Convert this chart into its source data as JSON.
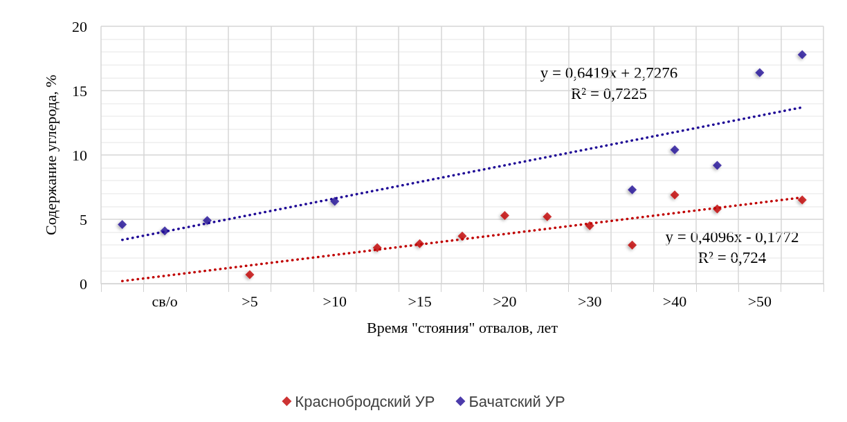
{
  "chart_data": {
    "type": "scatter",
    "xlabel": "Время \"стояния\" отвалов, лет",
    "ylabel": "Содержание углерода, %",
    "categories": [
      null,
      "св/о",
      null,
      ">5",
      null,
      ">10",
      null,
      ">15",
      null,
      ">20",
      null,
      ">30",
      null,
      ">40",
      null,
      ">50",
      null
    ],
    "series": [
      {
        "name": "Краснобродский УР",
        "color": "#c00000",
        "values": [
          null,
          null,
          null,
          0.7,
          null,
          null,
          2.8,
          3.1,
          3.7,
          5.3,
          5.2,
          4.5,
          3.0,
          6.9,
          5.8,
          null,
          6.5
        ]
      },
      {
        "name": "Бачатский УР",
        "color": "#1f0a96",
        "values": [
          4.6,
          4.1,
          4.9,
          null,
          null,
          6.4,
          null,
          null,
          null,
          null,
          null,
          null,
          7.3,
          10.4,
          9.2,
          16.4,
          17.8
        ]
      },
      {
        "type": "line",
        "color": "#c00000",
        "line_style": "dotted",
        "marker": "none",
        "values": [
          0.2,
          null,
          null,
          null,
          null,
          null,
          null,
          null,
          null,
          null,
          null,
          null,
          null,
          null,
          null,
          null,
          6.7
        ]
      },
      {
        "type": "line",
        "color": "#1f0a96",
        "line_style": "dotted",
        "marker": "none",
        "values": [
          3.4,
          null,
          null,
          null,
          null,
          null,
          null,
          null,
          null,
          null,
          null,
          null,
          null,
          null,
          null,
          null,
          13.7
        ]
      }
    ],
    "marker": "diamond",
    "ylim": [
      0,
      20
    ],
    "yticks": [
      0,
      5,
      10,
      15,
      20
    ],
    "grid": true,
    "legend": "bottom",
    "annotations": [
      "y = 0,6419x + 2,7276\nR² = 0,7225",
      "y = 0,4096x - 0,1772\nR² = 0,724"
    ]
  }
}
